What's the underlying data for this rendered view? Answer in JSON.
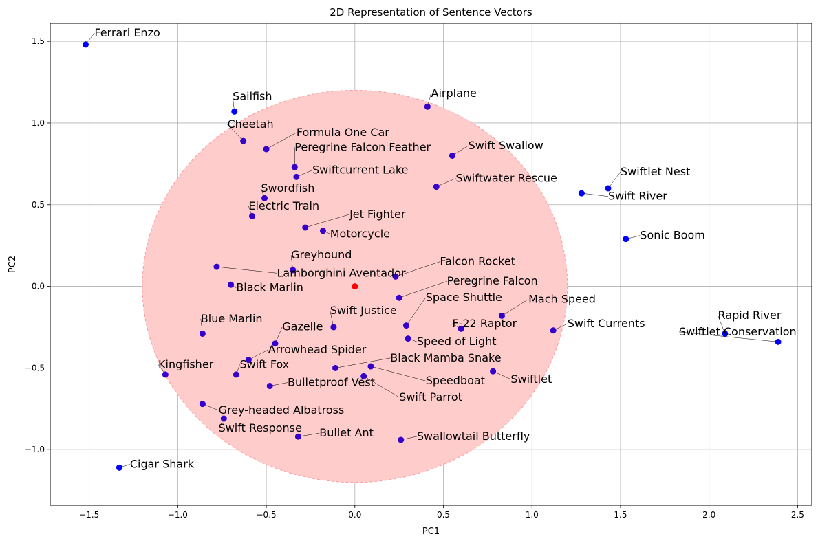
{
  "chart_data": {
    "type": "scatter",
    "title": "2D Representation of Sentence Vectors",
    "xlabel": "PC1",
    "ylabel": "PC2",
    "xlim": [
      -1.72,
      2.58
    ],
    "ylim": [
      -1.34,
      1.61
    ],
    "xticks": [
      -1.5,
      -1.0,
      -0.5,
      0.0,
      0.5,
      1.0,
      1.5,
      2.0,
      2.5
    ],
    "xtick_labels": [
      "−1.5",
      "−1.0",
      "−0.5",
      "0.0",
      "0.5",
      "1.0",
      "1.5",
      "2.0",
      "2.5"
    ],
    "yticks": [
      -1.0,
      -0.5,
      0.0,
      0.5,
      1.0,
      1.5
    ],
    "ytick_labels": [
      "−1.0",
      "−0.5",
      "0.0",
      "0.5",
      "1.0",
      "1.5"
    ],
    "grid": true,
    "point_color": "#0000ff",
    "center_color": "#ff0000",
    "circle_fill": "#ffcccc",
    "circle_edge": "#ff9999",
    "circle": {
      "cx": 0.0,
      "cy": 0.0,
      "r": 1.2
    },
    "center": {
      "x": 0.0,
      "y": 0.0
    },
    "points": [
      {
        "label": "Ferrari Enzo",
        "x": -1.52,
        "y": 1.48,
        "lx": -1.47,
        "ly": 1.53
      },
      {
        "label": "Sailfish",
        "x": -0.68,
        "y": 1.07,
        "lx": -0.69,
        "ly": 1.14
      },
      {
        "label": "Airplane",
        "x": 0.41,
        "y": 1.1,
        "lx": 0.43,
        "ly": 1.16
      },
      {
        "label": "Cheetah",
        "x": -0.63,
        "y": 0.89,
        "lx": -0.72,
        "ly": 0.97
      },
      {
        "label": "Formula One Car",
        "x": -0.5,
        "y": 0.84,
        "lx": -0.33,
        "ly": 0.92
      },
      {
        "label": "Peregrine Falcon Feather",
        "x": -0.34,
        "y": 0.73,
        "lx": -0.34,
        "ly": 0.83
      },
      {
        "label": "Swift Swallow",
        "x": 0.55,
        "y": 0.8,
        "lx": 0.64,
        "ly": 0.84
      },
      {
        "label": "Swiftcurrent Lake",
        "x": -0.33,
        "y": 0.67,
        "lx": -0.24,
        "ly": 0.69
      },
      {
        "label": "Swiftwater Rescue",
        "x": 0.46,
        "y": 0.61,
        "lx": 0.57,
        "ly": 0.64
      },
      {
        "label": "Swiftlet Nest",
        "x": 1.43,
        "y": 0.6,
        "lx": 1.5,
        "ly": 0.68
      },
      {
        "label": "Swift River",
        "x": 1.28,
        "y": 0.57,
        "lx": 1.43,
        "ly": 0.53
      },
      {
        "label": "Swordfish",
        "x": -0.51,
        "y": 0.54,
        "lx": -0.53,
        "ly": 0.58
      },
      {
        "label": "Electric Train",
        "x": -0.58,
        "y": 0.43,
        "lx": -0.6,
        "ly": 0.47
      },
      {
        "label": "Jet Fighter",
        "x": -0.28,
        "y": 0.36,
        "lx": -0.03,
        "ly": 0.42
      },
      {
        "label": "Motorcycle",
        "x": -0.18,
        "y": 0.34,
        "lx": -0.14,
        "ly": 0.3
      },
      {
        "label": "Sonic Boom",
        "x": 1.53,
        "y": 0.29,
        "lx": 1.61,
        "ly": 0.29
      },
      {
        "label": "Greyhound",
        "x": -0.35,
        "y": 0.1,
        "lx": -0.36,
        "ly": 0.17
      },
      {
        "label": "Lamborghini Aventador",
        "x": -0.78,
        "y": 0.12,
        "lx": -0.44,
        "ly": 0.06
      },
      {
        "label": "Falcon Rocket",
        "x": 0.23,
        "y": 0.06,
        "lx": 0.48,
        "ly": 0.13
      },
      {
        "label": "Black Marlin",
        "x": -0.7,
        "y": 0.01,
        "lx": -0.67,
        "ly": -0.03
      },
      {
        "label": "Peregrine Falcon",
        "x": 0.25,
        "y": -0.07,
        "lx": 0.52,
        "ly": 0.01
      },
      {
        "label": "Mach Speed",
        "x": 0.83,
        "y": -0.18,
        "lx": 0.98,
        "ly": -0.1
      },
      {
        "label": "Space Shuttle",
        "x": 0.29,
        "y": -0.24,
        "lx": 0.4,
        "ly": -0.09
      },
      {
        "label": "Swift Justice",
        "x": -0.12,
        "y": -0.25,
        "lx": -0.14,
        "ly": -0.17
      },
      {
        "label": "Swift Currents",
        "x": 1.12,
        "y": -0.27,
        "lx": 1.2,
        "ly": -0.25
      },
      {
        "label": "F-22 Raptor",
        "x": 0.6,
        "y": -0.26,
        "lx": 0.55,
        "ly": -0.25
      },
      {
        "label": "Blue Marlin",
        "x": -0.86,
        "y": -0.29,
        "lx": -0.87,
        "ly": -0.22
      },
      {
        "label": "Gazelle",
        "x": -0.45,
        "y": -0.35,
        "lx": -0.41,
        "ly": -0.27
      },
      {
        "label": "Speed of Light",
        "x": 0.3,
        "y": -0.32,
        "lx": 0.35,
        "ly": -0.36
      },
      {
        "label": "Rapid River",
        "x": 2.09,
        "y": -0.29,
        "lx": 2.05,
        "ly": -0.2
      },
      {
        "label": "Swiftlet Conservation",
        "x": 2.39,
        "y": -0.34,
        "lx": 1.83,
        "ly": -0.3
      },
      {
        "label": "Arrowhead Spider",
        "x": -0.6,
        "y": -0.45,
        "lx": -0.49,
        "ly": -0.41
      },
      {
        "label": "Black Mamba Snake",
        "x": -0.11,
        "y": -0.5,
        "lx": 0.2,
        "ly": -0.46
      },
      {
        "label": "Swift Fox",
        "x": -0.67,
        "y": -0.54,
        "lx": -0.65,
        "ly": -0.5
      },
      {
        "label": "Kingfisher",
        "x": -1.07,
        "y": -0.54,
        "lx": -1.11,
        "ly": -0.5
      },
      {
        "label": "Speedboat",
        "x": 0.09,
        "y": -0.49,
        "lx": 0.4,
        "ly": -0.6
      },
      {
        "label": "Swiftlet",
        "x": 0.78,
        "y": -0.52,
        "lx": 0.88,
        "ly": -0.59
      },
      {
        "label": "Swift Parrot",
        "x": 0.05,
        "y": -0.55,
        "lx": 0.25,
        "ly": -0.7
      },
      {
        "label": "Bulletproof Vest",
        "x": -0.48,
        "y": -0.61,
        "lx": -0.38,
        "ly": -0.61
      },
      {
        "label": "Grey-headed Albatross",
        "x": -0.86,
        "y": -0.72,
        "lx": -0.77,
        "ly": -0.78
      },
      {
        "label": "Swift Response",
        "x": -0.74,
        "y": -0.81,
        "lx": -0.77,
        "ly": -0.89
      },
      {
        "label": "Bullet Ant",
        "x": -0.32,
        "y": -0.92,
        "lx": -0.2,
        "ly": -0.92
      },
      {
        "label": "Swallowtail Butterfly",
        "x": 0.26,
        "y": -0.94,
        "lx": 0.35,
        "ly": -0.94
      },
      {
        "label": "Cigar Shark",
        "x": -1.33,
        "y": -1.11,
        "lx": -1.27,
        "ly": -1.11
      }
    ]
  }
}
